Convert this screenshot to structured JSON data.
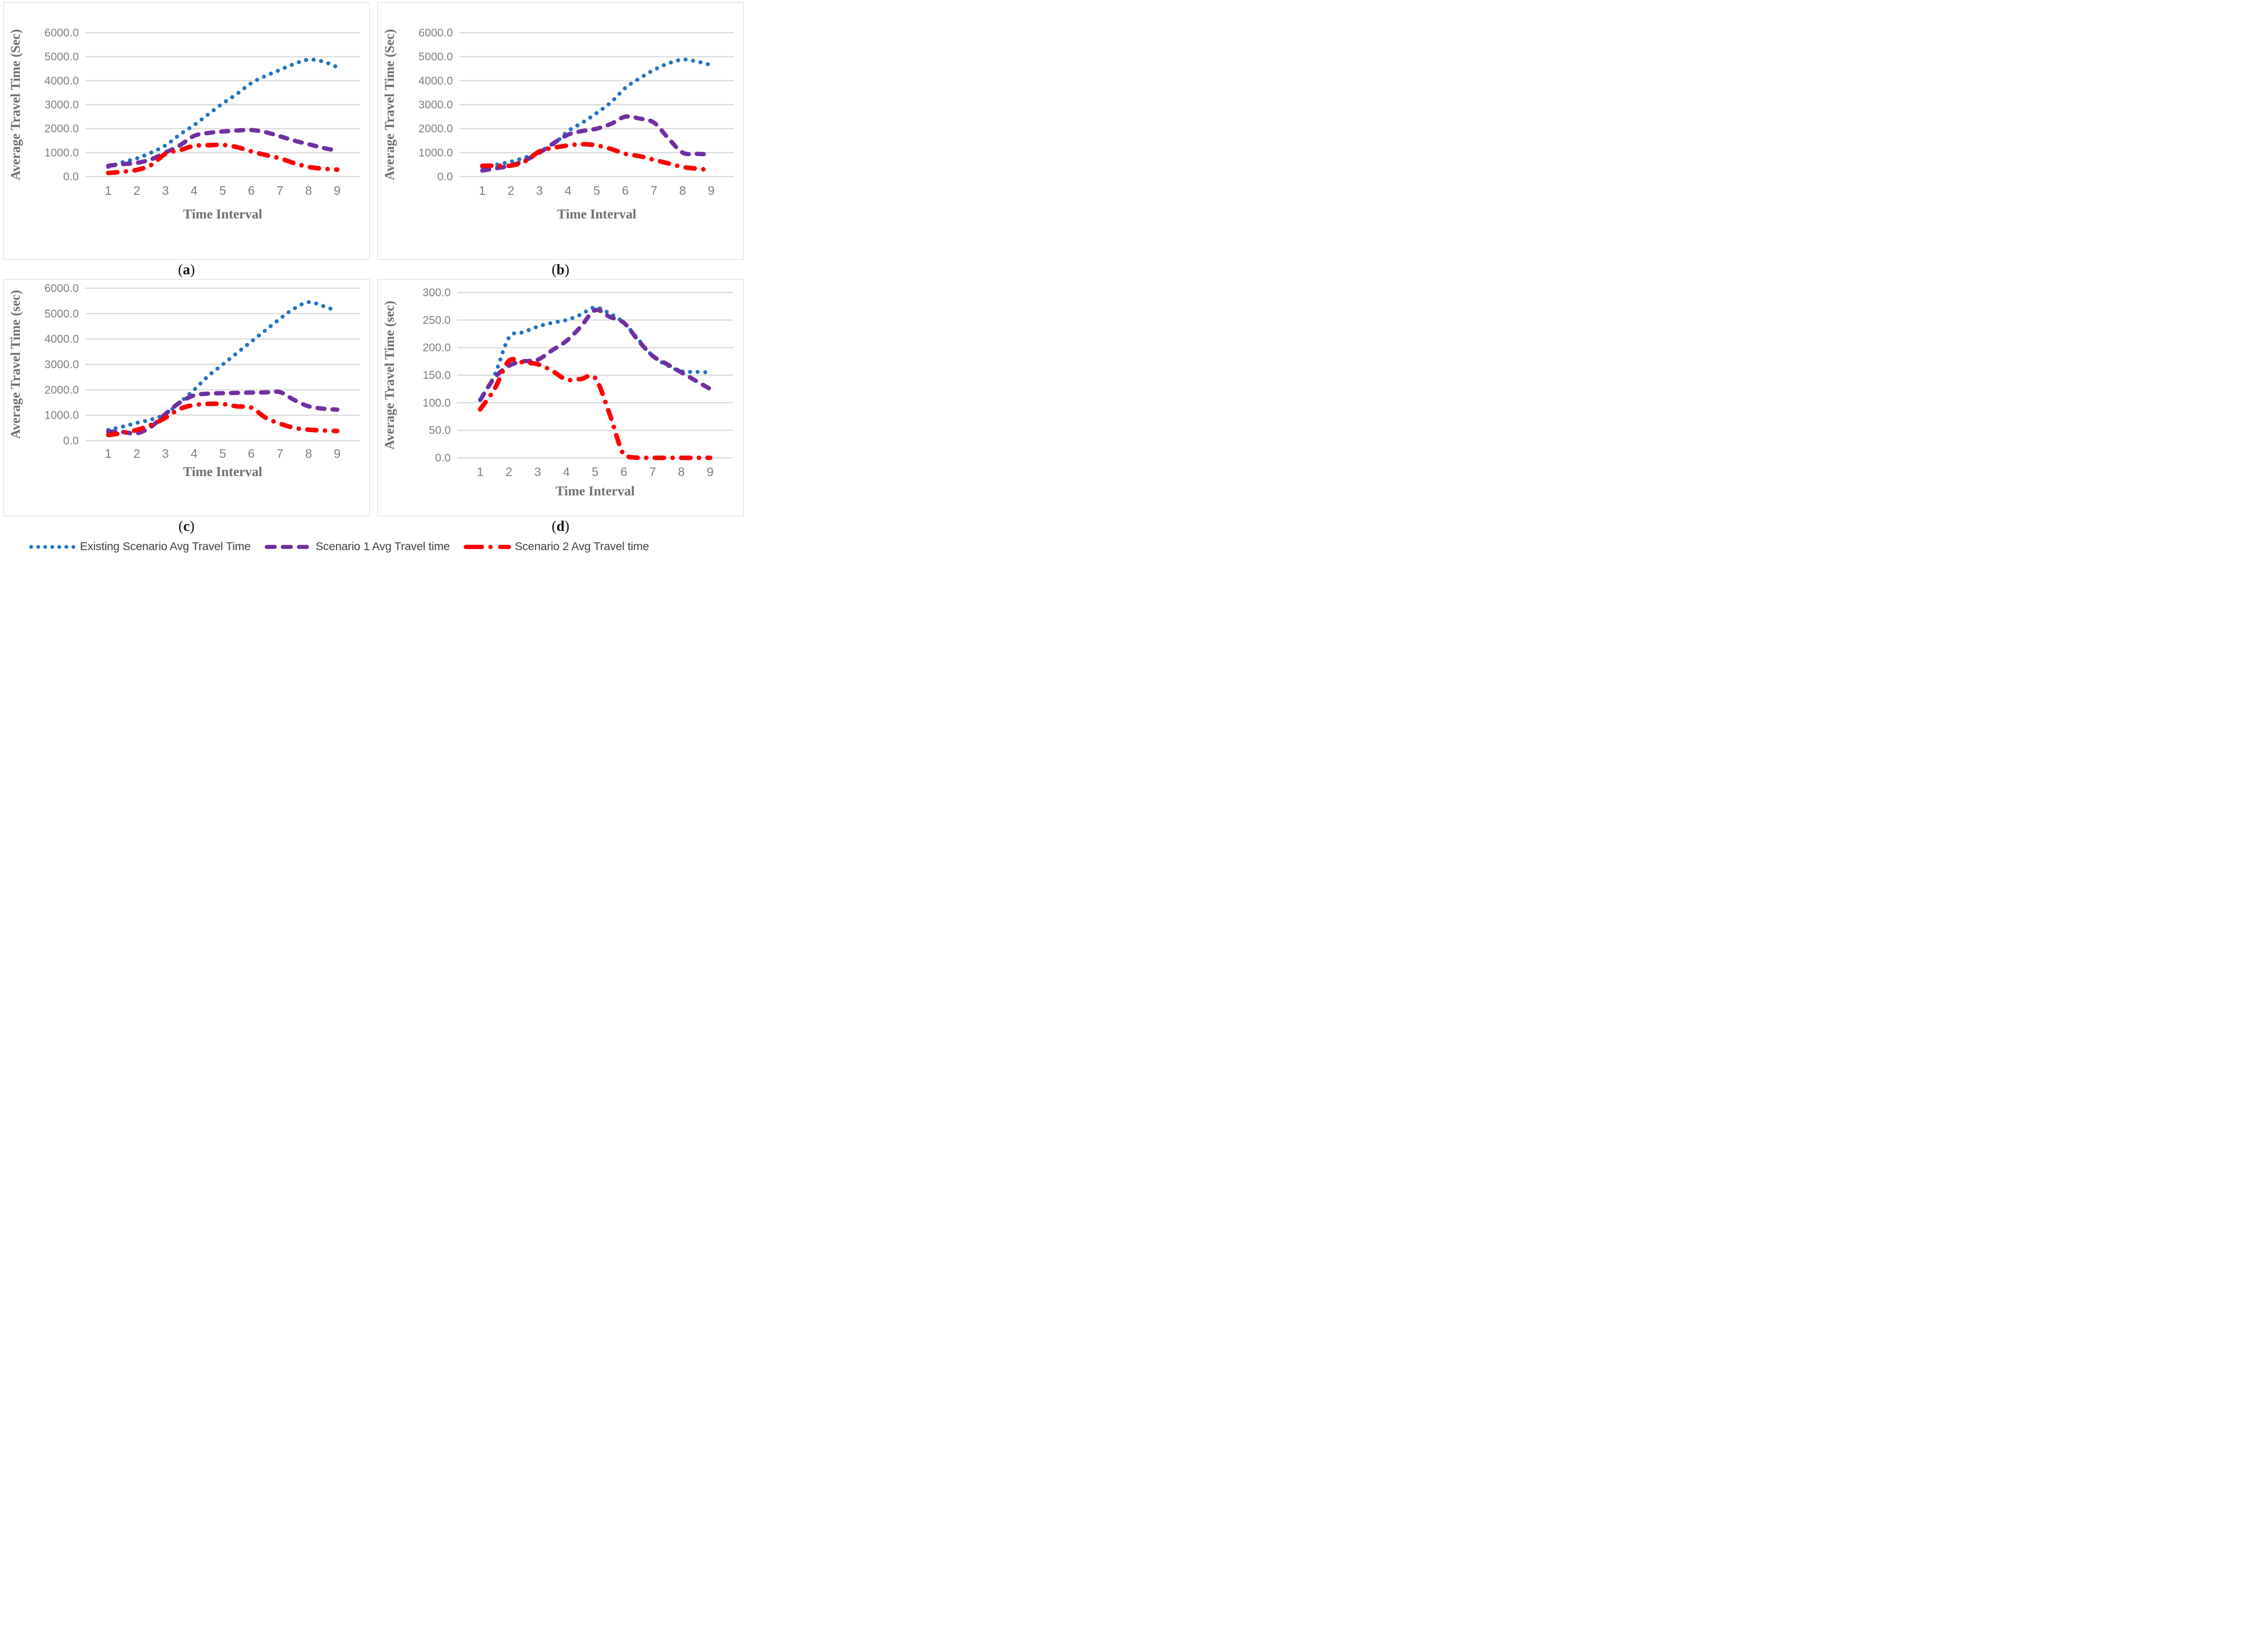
{
  "figure": {
    "caption_open": "(",
    "caption_close": ")"
  },
  "styles": {
    "grid_color": "#D9D9D9",
    "tick_text_color": "#7F7F7F",
    "axis_title_color": "#6E6E6E",
    "legend_text_color": "#3F3F3F",
    "existing_color": "#2273C3",
    "scenario1_color": "#7030A0",
    "scenario2_color": "#FF0000"
  },
  "legend": {
    "items": [
      {
        "label": "Existing Scenario Avg Travel Time",
        "color": "#2273C3",
        "dash": "dot"
      },
      {
        "label": "Scenario 1 Avg Travel time",
        "color": "#7030A0",
        "dash": "dash"
      },
      {
        "label": "Scenario 2 Avg Travel time",
        "color": "#FF0000",
        "dash": "dashdot"
      }
    ]
  },
  "chart_data": [
    {
      "id": "a",
      "type": "line",
      "caption_letter": "a",
      "xlabel": "Time Interval",
      "ylabel": "Average Travel Time (Sec)",
      "ylim": [
        0,
        6000
      ],
      "ytick_step": 1000,
      "ytick_labels": [
        "0.0",
        "1000.0",
        "2000.0",
        "3000.0",
        "4000.0",
        "5000.0",
        "6000.0"
      ],
      "x_categories": [
        1,
        2,
        3,
        4,
        5,
        6,
        7,
        8,
        9
      ],
      "grid": true,
      "legend_position": "bottom-shared",
      "x": [
        1,
        1.5,
        2,
        2.5,
        3,
        3.5,
        4,
        4.5,
        5,
        5.5,
        6,
        6.5,
        7,
        7.5,
        8,
        8.5,
        9
      ],
      "series": [
        {
          "key": "existing",
          "name": "Existing Scenario Avg Travel Time",
          "color": "#2273C3",
          "dash": "dot",
          "values": [
            400,
            600,
            760,
            1000,
            1300,
            1750,
            2150,
            2600,
            3050,
            3450,
            3900,
            4200,
            4450,
            4700,
            4880,
            4800,
            4570
          ]
        },
        {
          "key": "scenario1",
          "name": "Scenario 1 Avg Travel time",
          "color": "#7030A0",
          "dash": "dash",
          "values": [
            450,
            520,
            570,
            720,
            1000,
            1300,
            1700,
            1820,
            1880,
            1920,
            1940,
            1850,
            1680,
            1500,
            1350,
            1200,
            1080
          ]
        },
        {
          "key": "scenario2",
          "name": "Scenario 2 Avg Travel time",
          "color": "#FF0000",
          "dash": "dashdot",
          "values": [
            150,
            200,
            280,
            480,
            950,
            1100,
            1280,
            1310,
            1320,
            1230,
            1050,
            900,
            760,
            560,
            400,
            330,
            290
          ]
        }
      ]
    },
    {
      "id": "b",
      "type": "line",
      "caption_letter": "b",
      "xlabel": "Time Interval",
      "ylabel": "Average Travel Time (Sec)",
      "ylim": [
        0,
        6000
      ],
      "ytick_step": 1000,
      "ytick_labels": [
        "0.0",
        "1000.0",
        "2000.0",
        "3000.0",
        "4000.0",
        "5000.0",
        "6000.0"
      ],
      "x_categories": [
        1,
        2,
        3,
        4,
        5,
        6,
        7,
        8,
        9
      ],
      "grid": true,
      "legend_position": "bottom-shared",
      "x": [
        1,
        1.5,
        2,
        2.5,
        3,
        3.5,
        4,
        4.5,
        5,
        5.5,
        6,
        6.5,
        7,
        7.5,
        8,
        8.5,
        9
      ],
      "series": [
        {
          "key": "existing",
          "name": "Existing Scenario Avg Travel Time",
          "color": "#2273C3",
          "dash": "dot",
          "values": [
            400,
            500,
            620,
            800,
            1020,
            1350,
            1900,
            2250,
            2650,
            3100,
            3700,
            4100,
            4450,
            4720,
            4880,
            4800,
            4650
          ]
        },
        {
          "key": "scenario1",
          "name": "Scenario 1 Avg Travel time",
          "color": "#7030A0",
          "dash": "dash",
          "values": [
            250,
            350,
            460,
            680,
            1000,
            1400,
            1750,
            1900,
            2000,
            2200,
            2500,
            2420,
            2250,
            1600,
            1000,
            950,
            930
          ]
        },
        {
          "key": "scenario2",
          "name": "Scenario 2 Avg Travel time",
          "color": "#FF0000",
          "dash": "dashdot",
          "values": [
            450,
            455,
            460,
            640,
            1050,
            1200,
            1300,
            1350,
            1300,
            1150,
            950,
            850,
            700,
            550,
            400,
            330,
            270
          ]
        }
      ]
    },
    {
      "id": "c",
      "type": "line",
      "caption_letter": "c",
      "xlabel": "Time Interval",
      "ylabel": "Average Travel Time (sec)",
      "ylim": [
        0,
        6000
      ],
      "ytick_step": 1000,
      "ytick_labels": [
        "0.0",
        "1000.0",
        "2000.0",
        "3000.0",
        "4000.0",
        "5000.0",
        "6000.0"
      ],
      "x_categories": [
        1,
        2,
        3,
        4,
        5,
        6,
        7,
        8,
        9
      ],
      "grid": true,
      "legend_position": "bottom-shared",
      "x": [
        1,
        1.5,
        2,
        2.5,
        3,
        3.5,
        4,
        4.5,
        5,
        5.5,
        6,
        6.5,
        7,
        7.5,
        8,
        8.5,
        9
      ],
      "series": [
        {
          "key": "existing",
          "name": "Existing Scenario Avg Travel Time",
          "color": "#2273C3",
          "dash": "dot",
          "values": [
            420,
            550,
            700,
            830,
            1050,
            1500,
            2000,
            2550,
            3000,
            3450,
            3900,
            4350,
            4800,
            5200,
            5450,
            5300,
            5100
          ]
        },
        {
          "key": "scenario1",
          "name": "Scenario 1 Avg Travel time",
          "color": "#7030A0",
          "dash": "dash",
          "values": [
            360,
            340,
            290,
            550,
            1050,
            1500,
            1780,
            1850,
            1870,
            1880,
            1890,
            1900,
            1910,
            1600,
            1350,
            1260,
            1220
          ]
        },
        {
          "key": "scenario2",
          "name": "Scenario 2 Avg Travel time",
          "color": "#FF0000",
          "dash": "dashdot",
          "values": [
            220,
            300,
            420,
            620,
            900,
            1250,
            1400,
            1450,
            1440,
            1350,
            1300,
            900,
            670,
            500,
            430,
            400,
            380
          ]
        }
      ]
    },
    {
      "id": "d",
      "type": "line",
      "caption_letter": "d",
      "xlabel": "Time Interval",
      "ylabel": "Average Travel  Time (sec)",
      "ylim": [
        0,
        300
      ],
      "ytick_step": 50,
      "ytick_labels": [
        "0.0",
        "50.0",
        "100.0",
        "150.0",
        "200.0",
        "250.0",
        "300.0"
      ],
      "x_categories": [
        1,
        2,
        3,
        4,
        5,
        6,
        7,
        8,
        9
      ],
      "grid": true,
      "legend_position": "bottom-shared",
      "x": [
        1,
        1.5,
        2,
        2.5,
        3,
        3.5,
        4,
        4.5,
        5,
        5.5,
        6,
        6.5,
        7,
        7.5,
        8,
        8.5,
        9
      ],
      "series": [
        {
          "key": "existing",
          "name": "Existing Scenario Avg Travel Time",
          "color": "#2273C3",
          "dash": "dot",
          "values": [
            105,
            150,
            218,
            228,
            238,
            245,
            250,
            260,
            273,
            262,
            245,
            215,
            185,
            168,
            157,
            156,
            155
          ]
        },
        {
          "key": "scenario1",
          "name": "Scenario 1 Avg Travel time",
          "color": "#7030A0",
          "dash": "dash",
          "values": [
            105,
            145,
            167,
            175,
            178,
            195,
            212,
            238,
            268,
            256,
            245,
            213,
            185,
            170,
            155,
            140,
            125
          ]
        },
        {
          "key": "scenario2",
          "name": "Scenario 2 Avg Travel time",
          "color": "#FF0000",
          "dash": "dashdot",
          "values": [
            88,
            125,
            176,
            173,
            170,
            158,
            142,
            143,
            145,
            80,
            5,
            0,
            0,
            0,
            0,
            0,
            0
          ]
        }
      ]
    }
  ]
}
